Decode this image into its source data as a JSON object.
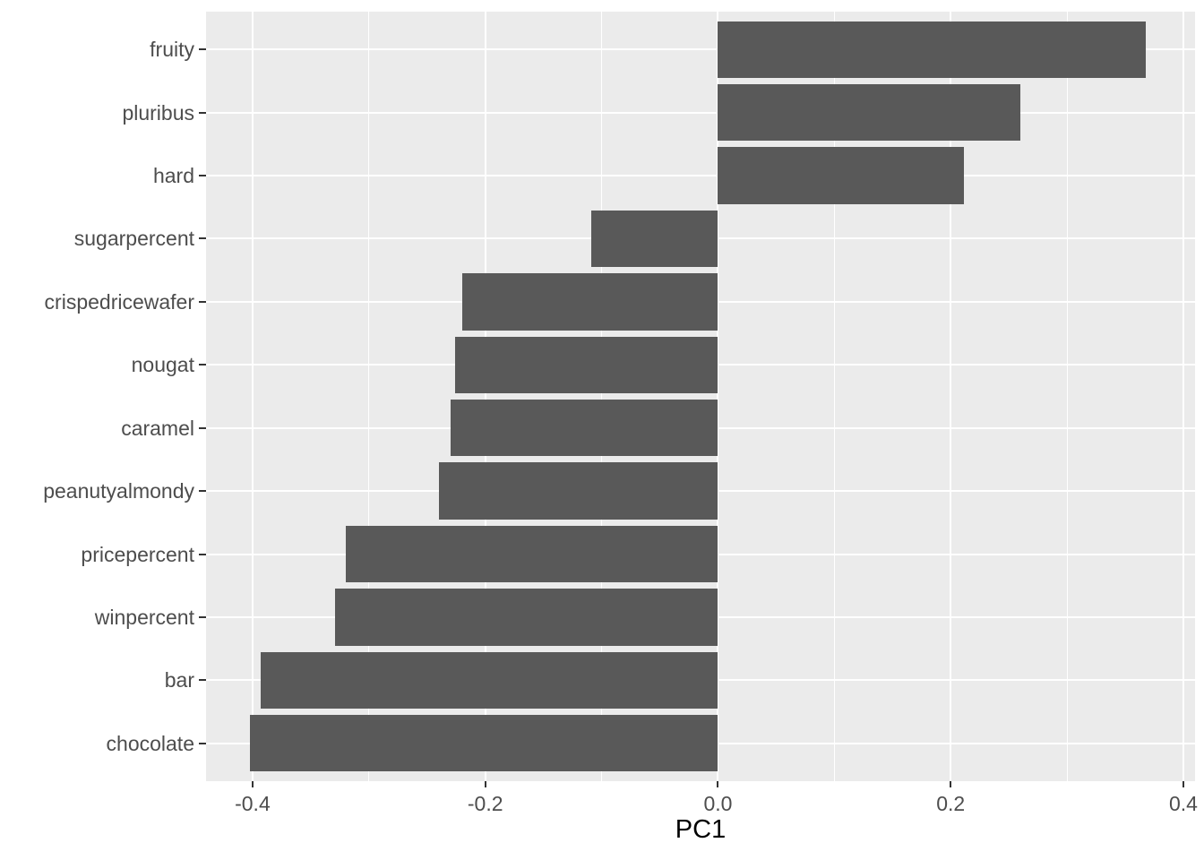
{
  "chart_data": {
    "type": "bar",
    "orientation": "horizontal",
    "title": "",
    "xlabel": "PC1",
    "ylabel": "",
    "categories": [
      "fruity",
      "pluribus",
      "hard",
      "sugarpercent",
      "crispedricewafer",
      "nougat",
      "caramel",
      "peanutyalmondy",
      "pricepercent",
      "winpercent",
      "bar",
      "chocolate"
    ],
    "categories_order": "top-to-bottom",
    "values": [
      0.368,
      0.26,
      0.211,
      -0.109,
      -0.22,
      -0.226,
      -0.23,
      -0.24,
      -0.32,
      -0.329,
      -0.393,
      -0.402
    ],
    "xlim": [
      -0.44,
      0.41
    ],
    "x_major_ticks": [
      -0.4,
      -0.2,
      0.0,
      0.2,
      0.4
    ],
    "x_tick_labels": [
      "-0.4",
      "-0.2",
      "0.0",
      "0.2",
      "0.4"
    ],
    "x_minor_gridlines": [
      -0.3,
      -0.1,
      0.1,
      0.3
    ],
    "grid": "white major gridlines on x and y categories, white minor gridlines on x",
    "legend": "none",
    "style": {
      "bar_fill": "#595959",
      "panel_background": "#EBEBEB",
      "gridline_color": "#FFFFFF",
      "tick_mark_color": "#333333",
      "axis_text_color": "#4D4D4D",
      "axis_title_color": "#000000",
      "figure_background": "#FFFFFF"
    }
  }
}
